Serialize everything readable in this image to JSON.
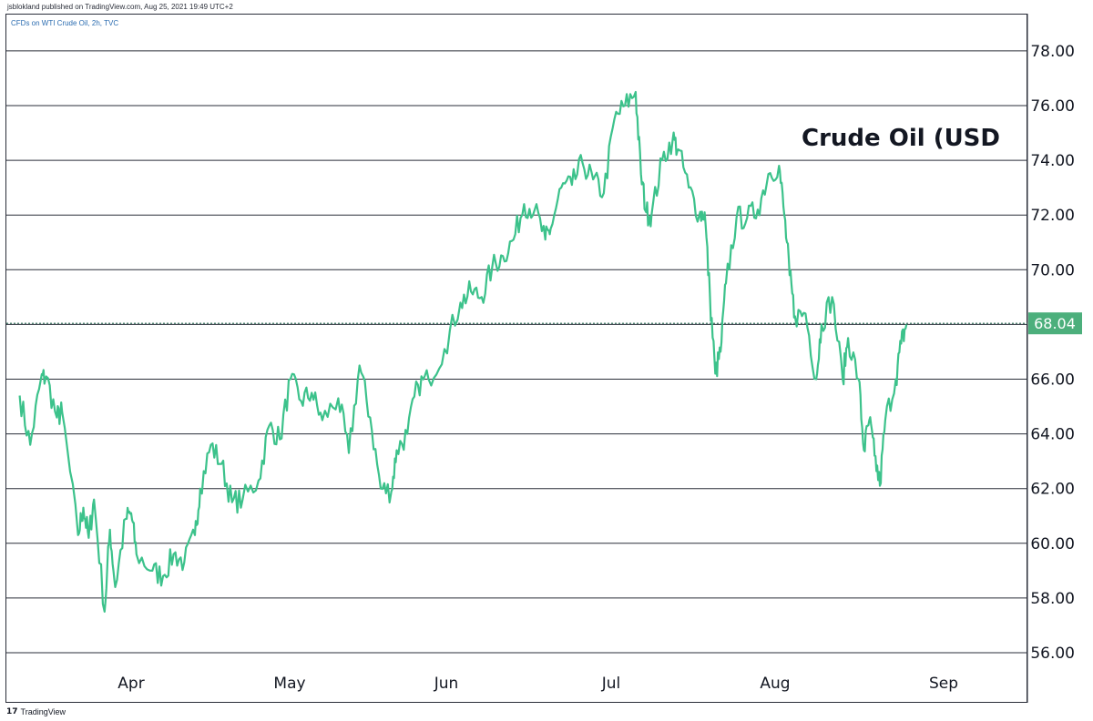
{
  "header": {
    "published_by": "jsblokland published on TradingView.com, Aug 25, 2021 19:49 UTC+2",
    "symbol_info": "CFDs on WTI Crude Oil, 2h, TVC"
  },
  "footer": {
    "logo_text": "TradingView"
  },
  "chart_data": {
    "type": "line",
    "annotation": "Crude Oil (USD",
    "x_ticks": [
      "Apr",
      "May",
      "Jun",
      "Jul",
      "Aug",
      "Sep"
    ],
    "y_ticks": [
      "56.00",
      "58.00",
      "60.00",
      "62.00",
      "64.00",
      "66.00",
      "68.00",
      "70.00",
      "72.00",
      "74.00",
      "76.00",
      "78.00"
    ],
    "ylim": [
      55.4,
      79.2
    ],
    "xlim": [
      "2021-03-11",
      "2021-09-18"
    ],
    "grid": {
      "horizontal": true,
      "vertical": false
    },
    "last_price": "68.04",
    "last_value": 68.04,
    "colors": {
      "line": "#3cc28b",
      "last_price_bg": "#4caf7c",
      "grid": "#2a2e39"
    },
    "series": [
      {
        "x": [
          "2021-03-11",
          "2021-03-13",
          "2021-03-15",
          "2021-03-16",
          "2021-03-18",
          "2021-03-19",
          "2021-03-22",
          "2021-03-23",
          "2021-03-24",
          "2021-03-25",
          "2021-03-27",
          "2021-03-28",
          "2021-03-29",
          "2021-03-31",
          "2021-04-01",
          "2021-04-02",
          "2021-04-05",
          "2021-04-07",
          "2021-04-09",
          "2021-04-11",
          "2021-04-13",
          "2021-04-14",
          "2021-04-16",
          "2021-04-18",
          "2021-04-20",
          "2021-04-22",
          "2021-04-25",
          "2021-04-27",
          "2021-04-29",
          "2021-05-01",
          "2021-05-03",
          "2021-05-05",
          "2021-05-07",
          "2021-05-10",
          "2021-05-12",
          "2021-05-14",
          "2021-05-16",
          "2021-05-18",
          "2021-05-20",
          "2021-05-21",
          "2021-05-23",
          "2021-05-25",
          "2021-05-27",
          "2021-05-30",
          "2021-06-02",
          "2021-06-04",
          "2021-06-06",
          "2021-06-08",
          "2021-06-10",
          "2021-06-12",
          "2021-06-14",
          "2021-06-16",
          "2021-06-18",
          "2021-06-19",
          "2021-06-21",
          "2021-06-23",
          "2021-06-25",
          "2021-06-27",
          "2021-06-29",
          "2021-07-01",
          "2021-07-03",
          "2021-07-05",
          "2021-07-06",
          "2021-07-07",
          "2021-07-08",
          "2021-07-10",
          "2021-07-12",
          "2021-07-13",
          "2021-07-15",
          "2021-07-17",
          "2021-07-18",
          "2021-07-19",
          "2021-07-20",
          "2021-07-21",
          "2021-07-22",
          "2021-07-24",
          "2021-07-26",
          "2021-07-28",
          "2021-07-30",
          "2021-08-01",
          "2021-08-02",
          "2021-08-03",
          "2021-08-04",
          "2021-08-06",
          "2021-08-08",
          "2021-08-09",
          "2021-08-11",
          "2021-08-13",
          "2021-08-14",
          "2021-08-16",
          "2021-08-17",
          "2021-08-18",
          "2021-08-19",
          "2021-08-20",
          "2021-08-21",
          "2021-08-23",
          "2021-08-24",
          "2021-08-25"
        ],
        "values": [
          65.4,
          63.6,
          66.0,
          66.1,
          64.6,
          64.8,
          60.3,
          61.3,
          60.2,
          61.6,
          57.5,
          60.5,
          58.4,
          60.9,
          61.1,
          59.6,
          59.0,
          58.8,
          59.6,
          59.3,
          60.3,
          62.0,
          63.6,
          62.9,
          61.5,
          61.6,
          62.3,
          64.3,
          63.8,
          66.0,
          65.2,
          65.5,
          64.5,
          65.3,
          63.3,
          66.5,
          64.6,
          62.0,
          61.9,
          63.4,
          64.0,
          65.8,
          66.0,
          67.1,
          68.8,
          69.2,
          69.0,
          70.1,
          70.5,
          71.1,
          72.4,
          72.2,
          71.1,
          71.5,
          73.0,
          73.1,
          73.9,
          73.3,
          72.8,
          75.5,
          76.0,
          76.5,
          73.5,
          72.1,
          72.0,
          74.0,
          74.8,
          74.4,
          73.0,
          72.0,
          72.1,
          69.0,
          66.2,
          67.0,
          69.5,
          71.9,
          71.9,
          72.2,
          73.5,
          73.8,
          72.0,
          69.8,
          68.3,
          68.4,
          66.0,
          68.0,
          69.0,
          66.0,
          67.5,
          66.0,
          63.4,
          64.5,
          63.2,
          62.1,
          64.5,
          66.0,
          67.3,
          68.0
        ]
      }
    ]
  }
}
